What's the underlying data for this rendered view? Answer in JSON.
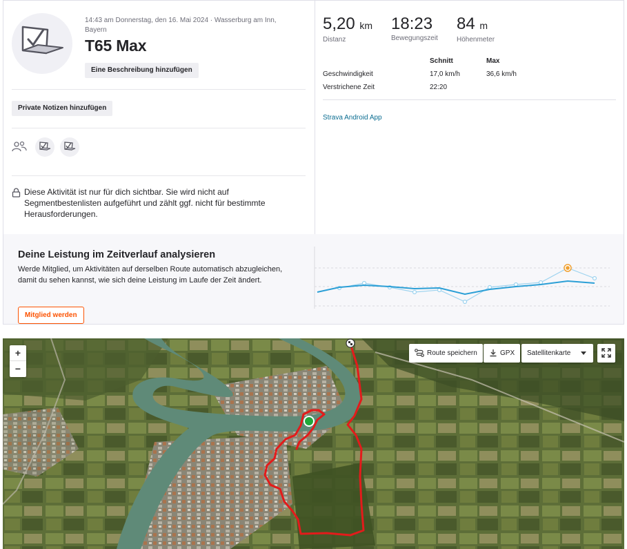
{
  "activity": {
    "meta": "14:43 am Donnerstag, den 16. Mai 2024 · Wasserburg am Inn, Bayern",
    "title": "T65 Max",
    "add_description": "Eine Beschreibung hinzufügen",
    "add_private_notes": "Private Notizen hinzufügen",
    "privacy_notice": "Diese Aktivität ist nur für dich sichtbar. Sie wird nicht auf Segmentbestenlisten aufgeführt und zählt ggf. nicht für bestimmte Herausforderungen."
  },
  "stats": {
    "distance": {
      "value": "5,20",
      "unit": "km",
      "label": "Distanz"
    },
    "moving_time": {
      "value": "18:23",
      "label": "Bewegungszeit"
    },
    "elevation": {
      "value": "84",
      "unit": "m",
      "label": "Höhenmeter"
    }
  },
  "details": {
    "col_avg": "Schnitt",
    "col_max": "Max",
    "rows": [
      {
        "label": "Geschwindigkeit",
        "avg": "17,0 km/h",
        "max": "36,6 km/h"
      },
      {
        "label": "Verstrichene Zeit",
        "avg": "22:20",
        "max": ""
      }
    ]
  },
  "device": "Strava Android App",
  "promo": {
    "heading": "Deine Leistung im Zeitverlauf analysieren",
    "body": "Werde Mitglied, um Aktivitäten auf derselben Route automatisch abzugleichen, damit du sehen kannst, wie sich deine Leistung im Laufe der Zeit ändert.",
    "cta": "Mitglied werden"
  },
  "map": {
    "zoom_in": "+",
    "zoom_out": "−",
    "save_route": "Route speichern",
    "gpx": "GPX",
    "map_type": "Satellitenkarte",
    "route_color": "#e31b1b",
    "start_color": "#1fa83a"
  },
  "colors": {
    "accent": "#fc5200",
    "link": "#0b6d91",
    "chart_line": "#2b9fd6",
    "highlight": "#f0a030"
  },
  "icons": [
    "group-icon",
    "kudo-icon",
    "lock-icon",
    "route-icon",
    "download-icon",
    "caret-down-icon",
    "fullscreen-icon"
  ]
}
